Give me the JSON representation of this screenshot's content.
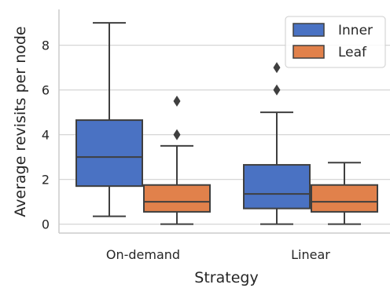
{
  "chart_data": {
    "type": "box",
    "xlabel": "Strategy",
    "ylabel": "Average revisits per node",
    "categories": [
      "On-demand",
      "Linear"
    ],
    "ylim": [
      -0.4,
      9.6
    ],
    "yticks": [
      "0",
      "2",
      "4",
      "6",
      "8"
    ],
    "grid": "horizontal",
    "legend_position": "top-right",
    "series": [
      {
        "name": "Inner",
        "color": "#4a72c3",
        "boxes": [
          {
            "whisker_low": 0.35,
            "q1": 1.7,
            "median": 3.0,
            "q3": 4.65,
            "whisker_high": 9.0,
            "outliers": []
          },
          {
            "whisker_low": 0.0,
            "q1": 0.7,
            "median": 1.35,
            "q3": 2.65,
            "whisker_high": 5.0,
            "outliers": [
              6.0,
              7.0
            ]
          }
        ]
      },
      {
        "name": "Leaf",
        "color": "#e1814b",
        "boxes": [
          {
            "whisker_low": 0.0,
            "q1": 0.55,
            "median": 1.0,
            "q3": 1.75,
            "whisker_high": 3.5,
            "outliers": [
              4.0,
              5.5
            ]
          },
          {
            "whisker_low": 0.0,
            "q1": 0.55,
            "median": 1.0,
            "q3": 1.75,
            "whisker_high": 2.75,
            "outliers": []
          }
        ]
      }
    ]
  }
}
